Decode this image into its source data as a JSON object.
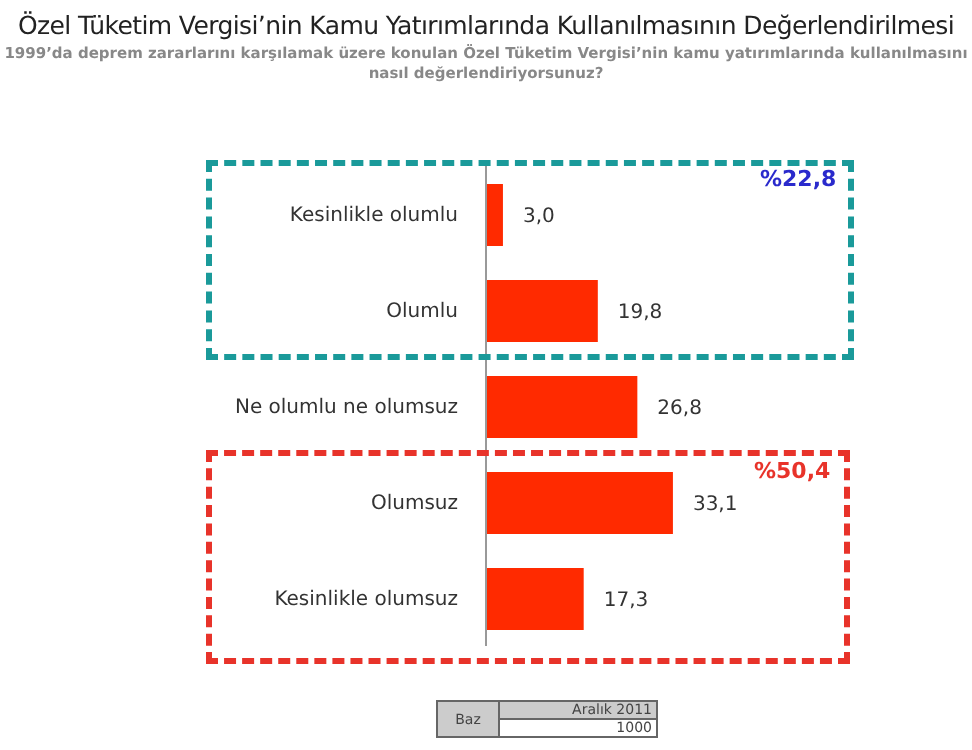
{
  "chart_data": {
    "type": "bar",
    "orientation": "horizontal",
    "title": "Özel Tüketim Vergisi’nin Kamu Yatırımlarında Kullanılmasının Değerlendirilmesi",
    "subtitle": "1999’da deprem zararlarını karşılamak üzere konulan Özel Tüketim Vergisi’nin kamu yatırımlarında kullanılmasını nasıl değerlendiriyorsunuz?",
    "categories": [
      "Kesinlikle olumlu",
      "Olumlu",
      "Ne olumlu ne olumsuz",
      "Olumsuz",
      "Kesinlikle olumsuz"
    ],
    "values": [
      3.0,
      19.8,
      26.8,
      33.1,
      17.3
    ],
    "value_labels": [
      "3,0",
      "19,8",
      "26,8",
      "33,1",
      "17,3"
    ],
    "color": "#ff2a00",
    "annotations": [
      "%22,8",
      "%50,4",
      "Baz",
      "Aralık 2011",
      "1000"
    ],
    "grid": false,
    "legend": false
  }
}
